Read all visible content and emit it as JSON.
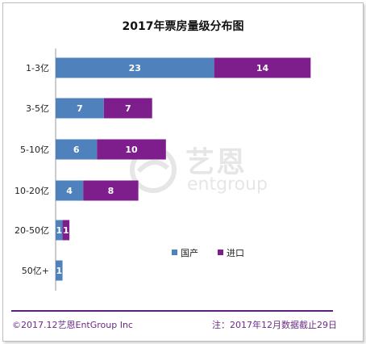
{
  "title": "2017年票房量级分布图",
  "chart_data": {
    "type": "bar",
    "orientation": "horizontal",
    "stacked": true,
    "categories": [
      "1-3亿",
      "3-5亿",
      "5-10亿",
      "10-20亿",
      "20-50亿",
      "50亿+"
    ],
    "series": [
      {
        "name": "国产",
        "values": [
          23,
          7,
          6,
          4,
          1,
          1
        ],
        "color": "#4f81bd"
      },
      {
        "name": "进口",
        "values": [
          14,
          7,
          10,
          8,
          1,
          0
        ],
        "color": "#7e1e8c"
      }
    ],
    "xlim": [
      0,
      40
    ],
    "legend_position": "bottom-right",
    "grid": false
  },
  "footer": {
    "left": "©2017.12艺恩EntGroup Inc",
    "right": "注：2017年12月数据截止29日"
  },
  "watermark": {
    "text": "艺恩",
    "sub": "entgroup"
  }
}
